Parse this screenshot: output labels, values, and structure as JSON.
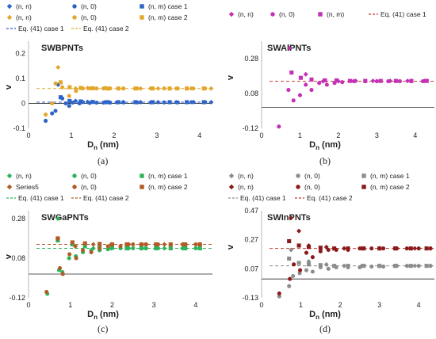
{
  "colors": {
    "blue": "#2e63c8",
    "gold": "#e3a72c",
    "magenta": "#c530b4",
    "green": "#2db45a",
    "brown": "#b25a26",
    "red": "#c0392b",
    "gray": "#8c8c8c",
    "darkred": "#8b1a1a"
  },
  "chart_data": [
    {
      "type": "scatter",
      "caption": "(a)",
      "title": "SWBPNTs",
      "xlabel_main": "D",
      "xlabel_sub": "n",
      "xlabel_unit": " (nm)",
      "ylabel": "v",
      "xlim": [
        0,
        4.3
      ],
      "ylim": [
        -0.1,
        0.25
      ],
      "xticks": [
        0,
        1,
        2,
        3,
        4
      ],
      "yticks": [
        -0.1,
        0,
        0.1,
        0.2
      ],
      "ytick_labels": [
        "-0.1",
        "0",
        "0.1",
        "0.2"
      ],
      "legend": [
        {
          "label": "(n, n)",
          "marker": "diamond",
          "color": "blue"
        },
        {
          "label": "(n, 0)",
          "marker": "circle",
          "color": "blue"
        },
        {
          "label": "(n, m) case 1",
          "marker": "square",
          "color": "blue"
        },
        {
          "label": "(n, n)",
          "marker": "diamond",
          "color": "gold"
        },
        {
          "label": "(n, 0)",
          "marker": "circle",
          "color": "gold"
        },
        {
          "label": "(n, m) case 2",
          "marker": "square",
          "color": "gold"
        },
        {
          "label": "Eq. (41) case 1",
          "marker": "dash",
          "color": "blue"
        },
        {
          "label": "Eq. (41) case 2",
          "marker": "dash",
          "color": "gold"
        }
      ],
      "lines": [
        {
          "color": "blue",
          "y": 0.005
        },
        {
          "color": "gold",
          "y": 0.06
        }
      ],
      "series": [
        {
          "name": "(n, n)",
          "marker": "diamond",
          "color": "blue",
          "x": [
            0.69,
            1.1,
            1.38,
            1.79,
            2.21,
            2.62,
            3.03,
            3.45,
            3.86,
            4.27
          ],
          "y": [
            0.075,
            0.01,
            0.006,
            0.005,
            0.005,
            0.005,
            0.005,
            0.005,
            0.005,
            0.005
          ]
        },
        {
          "name": "(n, 0)",
          "marker": "circle",
          "color": "blue",
          "x": [
            0.4,
            0.55,
            0.63,
            0.79,
            0.87,
            0.95,
            1.03,
            1.19,
            1.27,
            1.43,
            1.59,
            1.75,
            1.91,
            2.07,
            2.22,
            2.54,
            2.86,
            3.17,
            3.49,
            3.81,
            4.13
          ],
          "y": [
            -0.07,
            -0.04,
            -0.03,
            0.02,
            0.0,
            -0.01,
            0.003,
            0.0,
            0.005,
            0.002,
            0.003,
            0.003,
            0.003,
            0.004,
            0.004,
            0.004,
            0.004,
            0.004,
            0.004,
            0.005,
            0.005
          ]
        },
        {
          "name": "(n, m) case 1",
          "marker": "square",
          "color": "blue",
          "x": [
            0.75,
            0.96,
            1.22,
            1.5,
            1.85,
            2.1,
            2.5,
            2.9,
            3.3,
            3.7,
            4.1
          ],
          "y": [
            0.025,
            0.01,
            0.008,
            0.006,
            0.005,
            0.005,
            0.005,
            0.005,
            0.005,
            0.005,
            0.005
          ]
        },
        {
          "name": "(n, n)",
          "marker": "diamond",
          "color": "gold",
          "x": [
            0.69,
            1.1,
            1.38,
            1.79,
            2.21,
            2.62,
            3.03,
            3.45,
            3.86,
            4.27
          ],
          "y": [
            0.145,
            0.06,
            0.062,
            0.062,
            0.06,
            0.06,
            0.06,
            0.06,
            0.06,
            0.06
          ]
        },
        {
          "name": "(n, 0)",
          "marker": "circle",
          "color": "gold",
          "x": [
            0.4,
            0.55,
            0.63,
            0.79,
            0.95,
            1.11,
            1.27,
            1.43,
            1.59,
            1.75,
            1.91,
            2.22,
            2.54,
            2.86,
            3.17,
            3.49,
            3.81,
            4.13
          ],
          "y": [
            -0.045,
            0.0,
            0.08,
            0.065,
            0.03,
            0.05,
            0.06,
            0.06,
            0.06,
            0.06,
            0.06,
            0.06,
            0.06,
            0.06,
            0.06,
            0.06,
            0.06,
            0.06
          ]
        },
        {
          "name": "(n, m) case 2",
          "marker": "square",
          "color": "gold",
          "x": [
            0.75,
            0.96,
            1.22,
            1.5,
            1.85,
            2.1,
            2.5,
            2.9,
            3.3,
            3.7,
            4.1
          ],
          "y": [
            0.085,
            0.065,
            0.062,
            0.061,
            0.06,
            0.06,
            0.06,
            0.06,
            0.06,
            0.06,
            0.06
          ]
        }
      ]
    },
    {
      "type": "scatter",
      "caption": "(b)",
      "title": "SWAlPNTs",
      "xlabel_main": "D",
      "xlabel_sub": "n",
      "xlabel_unit": " (nm)",
      "ylabel": "v",
      "xlim": [
        0,
        4.5
      ],
      "ylim": [
        -0.12,
        0.38
      ],
      "xticks": [
        0,
        1,
        2,
        3,
        4
      ],
      "yticks": [
        -0.12,
        0.08,
        0.28
      ],
      "ytick_labels": [
        "-0.12",
        "0.08",
        "0.28"
      ],
      "legend": [
        {
          "label": "(n, n)",
          "marker": "diamond",
          "color": "magenta"
        },
        {
          "label": "(n, 0)",
          "marker": "circle",
          "color": "magenta"
        },
        {
          "label": "(n, m)",
          "marker": "square",
          "color": "magenta"
        },
        {
          "label": "Eq. (41) case 1",
          "marker": "dash",
          "color": "red"
        }
      ],
      "lines": [
        {
          "color": "red",
          "y": 0.15
        }
      ],
      "series": [
        {
          "name": "(n, n)",
          "marker": "diamond",
          "color": "magenta",
          "x": [
            0.72,
            1.15,
            1.6,
            2.0,
            2.45,
            2.9,
            3.35,
            3.8,
            4.25
          ],
          "y": [
            0.34,
            0.19,
            0.15,
            0.15,
            0.152,
            0.152,
            0.152,
            0.152,
            0.152
          ]
        },
        {
          "name": "(n, 0)",
          "marker": "circle",
          "color": "magenta",
          "x": [
            0.45,
            0.7,
            0.83,
            1.0,
            1.15,
            1.3,
            1.5,
            1.7,
            1.9,
            2.1,
            2.4,
            2.7,
            3.0,
            3.3,
            3.6,
            3.9,
            4.2
          ],
          "y": [
            -0.11,
            0.1,
            0.04,
            0.07,
            0.13,
            0.1,
            0.14,
            0.13,
            0.14,
            0.145,
            0.15,
            0.15,
            0.15,
            0.15,
            0.15,
            0.15,
            0.15
          ]
        },
        {
          "name": "(n, m)",
          "marker": "square",
          "color": "magenta",
          "x": [
            0.78,
            1.02,
            1.3,
            1.65,
            1.95,
            2.3,
            2.7,
            3.1,
            3.5,
            3.9,
            4.3
          ],
          "y": [
            0.2,
            0.17,
            0.16,
            0.155,
            0.155,
            0.152,
            0.152,
            0.152,
            0.152,
            0.152,
            0.152
          ]
        }
      ]
    },
    {
      "type": "scatter",
      "caption": "(c)",
      "title": "SWGaPNTs",
      "xlabel_main": "D",
      "xlabel_sub": "n",
      "xlabel_unit": " (nm)",
      "ylabel": "v",
      "xlim": [
        0,
        4.4
      ],
      "ylim": [
        -0.12,
        0.32
      ],
      "xticks": [
        0,
        1,
        2,
        3,
        4
      ],
      "yticks": [
        -0.12,
        0.08,
        0.28
      ],
      "ytick_labels": [
        "-0.12",
        "0.08",
        "0.28"
      ],
      "legend": [
        {
          "label": "(n, n)",
          "marker": "diamond",
          "color": "green"
        },
        {
          "label": "(n, 0)",
          "marker": "circle",
          "color": "green"
        },
        {
          "label": "(n, m) case 1",
          "marker": "square",
          "color": "green"
        },
        {
          "label": "Series5",
          "marker": "diamond",
          "color": "brown"
        },
        {
          "label": "(n, 0)",
          "marker": "circle",
          "color": "brown"
        },
        {
          "label": "(n, m) case 2",
          "marker": "square",
          "color": "brown"
        },
        {
          "label": "Eq. (41) case 1",
          "marker": "dash",
          "color": "green"
        },
        {
          "label": "Eq. (41) case 2",
          "marker": "dash",
          "color": "brown"
        }
      ],
      "lines": [
        {
          "color": "green",
          "y": 0.13
        },
        {
          "color": "brown",
          "y": 0.15
        }
      ],
      "series": [
        {
          "name": "(n, n)",
          "marker": "diamond",
          "color": "green",
          "x": [
            0.7,
            1.12,
            1.55,
            1.98,
            2.4,
            2.82,
            3.25,
            3.68,
            4.1
          ],
          "y": [
            0.28,
            0.14,
            0.13,
            0.13,
            0.13,
            0.13,
            0.13,
            0.13,
            0.13
          ]
        },
        {
          "name": "(n, 0)",
          "marker": "circle",
          "color": "green",
          "x": [
            0.45,
            0.73,
            0.81,
            0.97,
            1.13,
            1.3,
            1.5,
            1.7,
            1.9,
            2.2,
            2.5,
            2.8,
            3.1,
            3.4,
            3.7,
            4.0
          ],
          "y": [
            -0.1,
            0.02,
            0.01,
            0.08,
            0.09,
            0.11,
            0.12,
            0.12,
            0.125,
            0.13,
            0.13,
            0.13,
            0.13,
            0.13,
            0.13,
            0.13
          ]
        },
        {
          "name": "(n, m) case 1",
          "marker": "square",
          "color": "green",
          "x": [
            0.7,
            1.05,
            1.35,
            1.7,
            2.0,
            2.35,
            2.7,
            3.05,
            3.4,
            3.75,
            4.1
          ],
          "y": [
            0.17,
            0.15,
            0.14,
            0.135,
            0.132,
            0.13,
            0.13,
            0.13,
            0.13,
            0.13,
            0.13
          ]
        },
        {
          "name": "Series5",
          "marker": "diamond",
          "color": "brown",
          "x": [
            0.7,
            1.12,
            1.55,
            1.98,
            2.4,
            2.82,
            3.25,
            3.68,
            4.1
          ],
          "y": [
            0.18,
            0.14,
            0.15,
            0.15,
            0.15,
            0.15,
            0.15,
            0.15,
            0.15
          ]
        },
        {
          "name": "(n, 0)",
          "marker": "circle",
          "color": "brown",
          "x": [
            0.43,
            0.75,
            0.82,
            0.98,
            1.14,
            1.3,
            1.5,
            1.7,
            1.9,
            2.2,
            2.5,
            2.8,
            3.1,
            3.4,
            3.7,
            4.0
          ],
          "y": [
            -0.09,
            0.03,
            0.0,
            0.1,
            0.08,
            0.12,
            0.11,
            0.13,
            0.14,
            0.14,
            0.15,
            0.15,
            0.15,
            0.15,
            0.15,
            0.15
          ]
        },
        {
          "name": "(n, m) case 2",
          "marker": "square",
          "color": "brown",
          "x": [
            0.7,
            1.05,
            1.35,
            1.7,
            2.0,
            2.35,
            2.7,
            3.05,
            3.4,
            3.75,
            4.1
          ],
          "y": [
            0.18,
            0.16,
            0.155,
            0.152,
            0.15,
            0.15,
            0.15,
            0.15,
            0.15,
            0.15,
            0.15
          ]
        }
      ]
    },
    {
      "type": "scatter",
      "caption": "(d)",
      "title": "SWInPNTs",
      "xlabel_main": "D",
      "xlabel_sub": "n",
      "xlabel_unit": " (nm)",
      "ylabel": "v",
      "xlim": [
        0,
        4.4
      ],
      "ylim": [
        -0.13,
        0.47
      ],
      "xticks": [
        0,
        1,
        2,
        3,
        4
      ],
      "yticks": [
        -0.13,
        0.07,
        0.27,
        0.47
      ],
      "ytick_labels": [
        "-0.13",
        "0.07",
        "0.27",
        "0.47"
      ],
      "legend": [
        {
          "label": "(n, n)",
          "marker": "diamond",
          "color": "gray"
        },
        {
          "label": "(n, 0)",
          "marker": "circle",
          "color": "gray"
        },
        {
          "label": "(n, m) case 1",
          "marker": "square",
          "color": "gray"
        },
        {
          "label": "(n, n)",
          "marker": "diamond",
          "color": "darkred"
        },
        {
          "label": "(n, 0)",
          "marker": "circle",
          "color": "darkred"
        },
        {
          "label": "(n, m) case 2",
          "marker": "square",
          "color": "darkred"
        },
        {
          "label": "Eq. (41) case 1",
          "marker": "dash",
          "color": "gray"
        },
        {
          "label": "Eq. (41) case 2",
          "marker": "dash",
          "color": "red"
        }
      ],
      "lines": [
        {
          "color": "gray",
          "y": 0.09
        },
        {
          "color": "red",
          "y": 0.21
        }
      ],
      "series": [
        {
          "name": "(n, n)",
          "marker": "diamond",
          "color": "gray",
          "x": [
            0.75,
            1.2,
            1.65,
            2.1,
            2.55,
            3.0,
            3.45,
            3.9,
            4.3
          ],
          "y": [
            0.2,
            0.12,
            0.1,
            0.09,
            0.09,
            0.09,
            0.09,
            0.09,
            0.09
          ]
        },
        {
          "name": "(n, 0)",
          "marker": "circle",
          "color": "gray",
          "x": [
            0.45,
            0.7,
            0.8,
            0.97,
            1.14,
            1.3,
            1.5,
            1.7,
            1.9,
            2.2,
            2.5,
            2.8,
            3.1,
            3.4,
            3.7,
            4.0,
            4.3
          ],
          "y": [
            -0.12,
            -0.05,
            0.02,
            0.04,
            0.06,
            0.05,
            0.08,
            0.07,
            0.08,
            0.08,
            0.08,
            0.085,
            0.085,
            0.09,
            0.09,
            0.09,
            0.09
          ]
        },
        {
          "name": "(n, m) case 1",
          "marker": "square",
          "color": "gray",
          "x": [
            0.7,
            0.95,
            1.2,
            1.5,
            1.85,
            2.2,
            2.6,
            3.0,
            3.4,
            3.8,
            4.2
          ],
          "y": [
            0.14,
            0.11,
            0.1,
            0.095,
            0.09,
            0.09,
            0.09,
            0.09,
            0.09,
            0.09,
            0.09
          ]
        },
        {
          "name": "(n, n)",
          "marker": "diamond",
          "color": "darkred",
          "x": [
            0.75,
            0.95,
            1.2,
            1.65,
            2.1,
            2.55,
            3.0,
            3.45,
            3.9,
            4.3
          ],
          "y": [
            0.42,
            0.33,
            0.23,
            0.22,
            0.21,
            0.21,
            0.21,
            0.21,
            0.21,
            0.21
          ]
        },
        {
          "name": "(n, 0)",
          "marker": "circle",
          "color": "darkred",
          "x": [
            0.45,
            0.72,
            0.82,
            0.98,
            1.14,
            1.3,
            1.5,
            1.7,
            1.9,
            2.2,
            2.5,
            2.8,
            3.1,
            3.4,
            3.7,
            4.0,
            4.3
          ],
          "y": [
            -0.1,
            0.0,
            0.1,
            0.06,
            0.18,
            0.15,
            0.19,
            0.2,
            0.2,
            0.2,
            0.21,
            0.21,
            0.21,
            0.21,
            0.21,
            0.21,
            0.21
          ]
        },
        {
          "name": "(n, m) case 2",
          "marker": "square",
          "color": "darkred",
          "x": [
            0.7,
            0.95,
            1.2,
            1.5,
            1.85,
            2.2,
            2.6,
            3.0,
            3.4,
            3.8,
            4.2
          ],
          "y": [
            0.26,
            0.23,
            0.22,
            0.215,
            0.21,
            0.21,
            0.21,
            0.21,
            0.21,
            0.21,
            0.21
          ]
        }
      ]
    }
  ]
}
